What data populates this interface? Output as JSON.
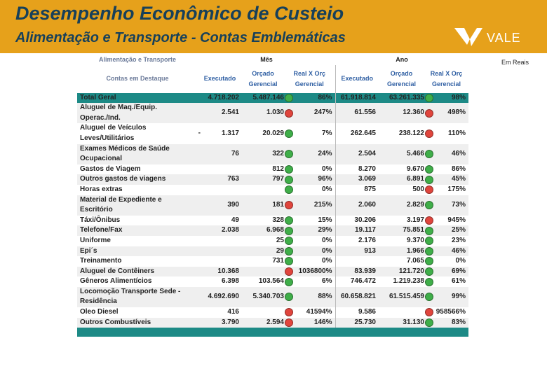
{
  "header": {
    "title": "Desempenho Econômico de Custeio",
    "subtitle": "Alimentação e Transporte - Contas Emblemáticas",
    "logo": "VALE"
  },
  "unit_note": "Em Reais",
  "table": {
    "corner": [
      "Alimentação e Transporte",
      "Contas em Destaque"
    ],
    "groups": [
      "Mês",
      "Ano"
    ],
    "columns": [
      "Executado",
      "Orçado Gerencial",
      "Real X Orç Gerencial",
      "Executado",
      "Orçado Gerencial",
      "Real X Orç Gerencial"
    ],
    "rows": [
      {
        "account": [
          "Total Geral"
        ],
        "total": true,
        "month": {
          "executed": "4.718.202",
          "budget": "5.487.146",
          "status": "green",
          "ratio": "86%"
        },
        "year": {
          "executed": "61.918.814",
          "budget": "63.261.335",
          "status": "green",
          "ratio": "98%"
        }
      },
      {
        "account": [
          "Aluguel de Maq./Equip.",
          "Operac./Ind."
        ],
        "month": {
          "executed": "2.541",
          "budget": "1.030",
          "status": "red",
          "ratio": "247%"
        },
        "year": {
          "executed": "61.556",
          "budget": "12.360",
          "status": "red",
          "ratio": "498%"
        }
      },
      {
        "account": [
          "Aluguel de Veículos",
          "Leves/Utilitários"
        ],
        "marker": "-",
        "month": {
          "executed": "1.317",
          "budget": "20.029",
          "status": "green",
          "ratio": "7%"
        },
        "year": {
          "executed": "262.645",
          "budget": "238.122",
          "status": "red",
          "ratio": "110%"
        }
      },
      {
        "account": [
          "Exames Médicos de Saúde",
          "Ocupacional"
        ],
        "month": {
          "executed": "76",
          "budget": "322",
          "status": "green",
          "ratio": "24%"
        },
        "year": {
          "executed": "2.504",
          "budget": "5.466",
          "status": "green",
          "ratio": "46%"
        }
      },
      {
        "account": [
          "Gastos de Viagem"
        ],
        "month": {
          "executed": null,
          "budget": "812",
          "status": "green",
          "ratio": "0%"
        },
        "year": {
          "executed": "8.270",
          "budget": "9.670",
          "status": "green",
          "ratio": "86%"
        }
      },
      {
        "account": [
          "Outros gastos de viagens"
        ],
        "month": {
          "executed": "763",
          "budget": "797",
          "status": "green",
          "ratio": "96%"
        },
        "year": {
          "executed": "3.069",
          "budget": "6.891",
          "status": "green",
          "ratio": "45%"
        }
      },
      {
        "account": [
          "Horas extras"
        ],
        "month": {
          "executed": null,
          "budget": null,
          "status": "green",
          "ratio": "0%"
        },
        "year": {
          "executed": "875",
          "budget": "500",
          "status": "red",
          "ratio": "175%"
        }
      },
      {
        "account": [
          "Material de Expediente e",
          "Escritório"
        ],
        "month": {
          "executed": "390",
          "budget": "181",
          "status": "red",
          "ratio": "215%"
        },
        "year": {
          "executed": "2.060",
          "budget": "2.829",
          "status": "green",
          "ratio": "73%"
        }
      },
      {
        "account": [
          "Táxi/Ônibus"
        ],
        "month": {
          "executed": "49",
          "budget": "328",
          "status": "green",
          "ratio": "15%"
        },
        "year": {
          "executed": "30.206",
          "budget": "3.197",
          "status": "red",
          "ratio": "945%"
        }
      },
      {
        "account": [
          "Telefone/Fax"
        ],
        "month": {
          "executed": "2.038",
          "budget": "6.968",
          "status": "green",
          "ratio": "29%"
        },
        "year": {
          "executed": "19.117",
          "budget": "75.851",
          "status": "green",
          "ratio": "25%"
        }
      },
      {
        "account": [
          "Uniforme"
        ],
        "month": {
          "executed": null,
          "budget": "25",
          "status": "green",
          "ratio": "0%"
        },
        "year": {
          "executed": "2.176",
          "budget": "9.370",
          "status": "green",
          "ratio": "23%"
        }
      },
      {
        "account": [
          "Epi´s"
        ],
        "month": {
          "executed": null,
          "budget": "29",
          "status": "green",
          "ratio": "0%"
        },
        "year": {
          "executed": "913",
          "budget": "1.966",
          "status": "green",
          "ratio": "46%"
        }
      },
      {
        "account": [
          "Treinamento"
        ],
        "month": {
          "executed": null,
          "budget": "731",
          "status": "green",
          "ratio": "0%"
        },
        "year": {
          "executed": null,
          "budget": "7.065",
          "status": "green",
          "ratio": "0%"
        }
      },
      {
        "account": [
          "Aluguel de Contêiners"
        ],
        "month": {
          "executed": "10.368",
          "budget": null,
          "status": "red",
          "ratio": "1036800%"
        },
        "year": {
          "executed": "83.939",
          "budget": "121.720",
          "status": "green",
          "ratio": "69%"
        }
      },
      {
        "account": [
          "Gêneros Alimentícios"
        ],
        "month": {
          "executed": "6.398",
          "budget": "103.564",
          "status": "green",
          "ratio": "6%"
        },
        "year": {
          "executed": "746.472",
          "budget": "1.219.238",
          "status": "green",
          "ratio": "61%"
        }
      },
      {
        "account": [
          "Locomoção Transporte Sede -",
          "Residência"
        ],
        "month": {
          "executed": "4.692.690",
          "budget": "5.340.703",
          "status": "green",
          "ratio": "88%"
        },
        "year": {
          "executed": "60.658.821",
          "budget": "61.515.459",
          "status": "green",
          "ratio": "99%"
        }
      },
      {
        "account": [
          "Oleo Diesel"
        ],
        "month": {
          "executed": "416",
          "budget": null,
          "status": "red",
          "ratio": "41594%"
        },
        "year": {
          "executed": "9.586",
          "budget": null,
          "status": "red",
          "ratio": "958566%"
        }
      },
      {
        "account": [
          "Outros Combustíveis"
        ],
        "month": {
          "executed": "3.790",
          "budget": "2.594",
          "status": "red",
          "ratio": "146%"
        },
        "year": {
          "executed": "25.730",
          "budget": "31.130",
          "status": "green",
          "ratio": "83%"
        }
      }
    ]
  }
}
